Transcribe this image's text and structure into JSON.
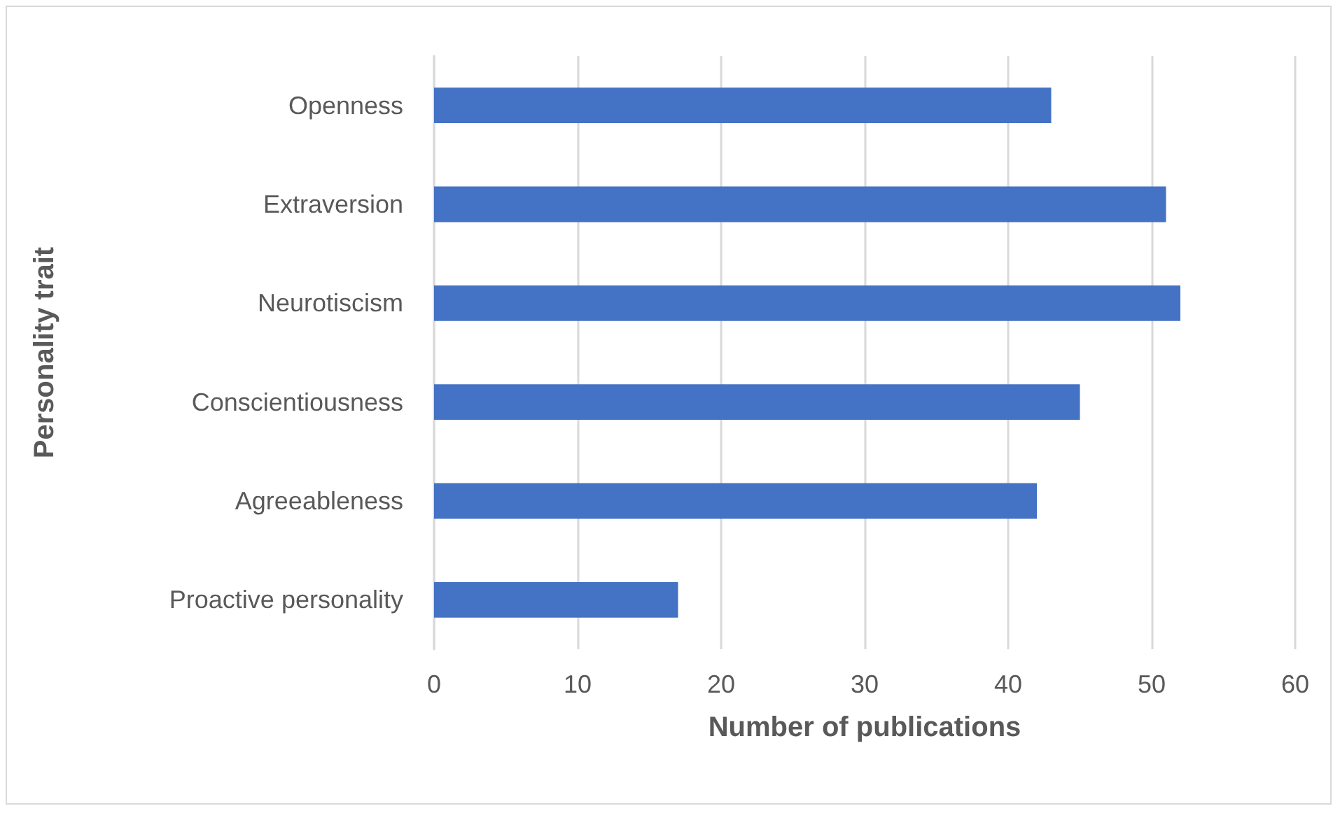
{
  "chart_data": {
    "type": "bar",
    "orientation": "horizontal",
    "xlabel": "Number of publications",
    "ylabel": "Personality trait",
    "categories": [
      "Openness",
      "Extraversion",
      "Neurotiscism",
      "Conscientiousness",
      "Agreeableness",
      "Proactive personality"
    ],
    "values": [
      43,
      51,
      52,
      45,
      42,
      17
    ],
    "color": "#4472c4",
    "xlim": [
      0,
      60
    ],
    "xticks": [
      0,
      10,
      20,
      30,
      40,
      50,
      60
    ],
    "grid": "x"
  }
}
